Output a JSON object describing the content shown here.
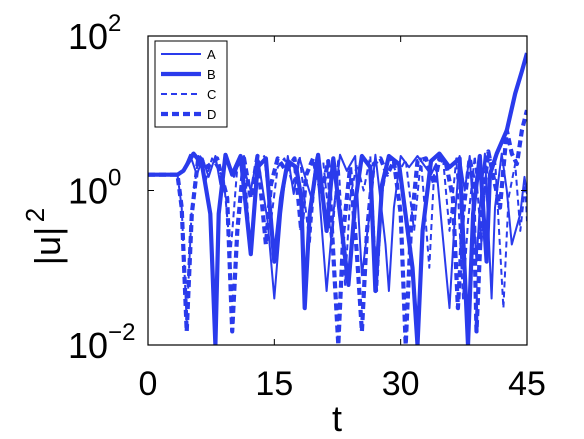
{
  "chart_data": {
    "type": "line",
    "xlabel": "t",
    "ylabel": "|u|",
    "ylabel_superscript": "2",
    "xlim": [
      0,
      45
    ],
    "ylim": [
      0.01,
      100
    ],
    "yscale": "log",
    "grid": false,
    "legend_position": "top-left",
    "xticks": [
      "0",
      "15",
      "30",
      "45"
    ],
    "xtick_values": [
      0,
      15,
      30,
      45
    ],
    "yticks": [
      {
        "value": 0.01,
        "base": "10",
        "exp": "−2"
      },
      {
        "value": 1,
        "base": "10",
        "exp": "0"
      },
      {
        "value": 100,
        "base": "10",
        "exp": "2"
      }
    ],
    "color": "#2a3bec",
    "series": [
      {
        "name": "A",
        "style": "solid-thin",
        "points": [
          [
            0,
            1.6
          ],
          [
            3.5,
            1.6
          ],
          [
            4.2,
            1.8
          ],
          [
            5.0,
            2.9
          ],
          [
            5.8,
            1.6
          ],
          [
            6.5,
            2.6
          ],
          [
            7.2,
            1.5
          ],
          [
            8.0,
            2.8
          ],
          [
            8.6,
            1.2
          ],
          [
            9.2,
            2.9
          ],
          [
            10.2,
            1.5
          ],
          [
            11.0,
            2.6
          ],
          [
            12.2,
            1.0
          ],
          [
            13.0,
            2.9
          ],
          [
            14.2,
            0.4
          ],
          [
            15.0,
            0.04
          ],
          [
            15.8,
            0.5
          ],
          [
            16.6,
            2.8
          ],
          [
            17.3,
            0.9
          ],
          [
            18.0,
            2.6
          ],
          [
            19.4,
            0.8
          ],
          [
            20.0,
            2.7
          ],
          [
            21.2,
            0.05
          ],
          [
            22.0,
            0.5
          ],
          [
            22.8,
            2.9
          ],
          [
            23.6,
            1.8
          ],
          [
            24.6,
            2.8
          ],
          [
            25.4,
            0.08
          ],
          [
            26.2,
            0.4
          ],
          [
            27.0,
            2.9
          ],
          [
            28.2,
            0.2
          ],
          [
            28.6,
            0.05
          ],
          [
            29.2,
            0.6
          ],
          [
            30.0,
            2.8
          ],
          [
            31.0,
            2.0
          ],
          [
            32.0,
            2.8
          ],
          [
            33.6,
            1.6
          ],
          [
            34.2,
            2.2
          ],
          [
            35.8,
            0.03
          ],
          [
            36.4,
            0.4
          ],
          [
            37.0,
            2.8
          ],
          [
            37.6,
            1.0
          ],
          [
            38.2,
            2.8
          ],
          [
            39.0,
            0.12
          ],
          [
            39.4,
            0.6
          ],
          [
            40.0,
            3.0
          ],
          [
            40.8,
            0.04
          ],
          [
            41.2,
            0.6
          ],
          [
            42.0,
            3.0
          ],
          [
            42.6,
            1.0
          ],
          [
            43.2,
            0.2
          ],
          [
            44.2,
            0.5
          ],
          [
            44.7,
            1.5
          ],
          [
            45.0,
            0.9
          ]
        ]
      },
      {
        "name": "B",
        "style": "solid-thick",
        "points": [
          [
            0,
            1.6
          ],
          [
            3.5,
            1.6
          ],
          [
            4.2,
            1.8
          ],
          [
            5.4,
            3.0
          ],
          [
            6.4,
            2.2
          ],
          [
            7.4,
            0.5
          ],
          [
            8.0,
            0.01
          ],
          [
            8.4,
            0.5
          ],
          [
            9.2,
            2.9
          ],
          [
            10.0,
            1.6
          ],
          [
            11.0,
            2.8
          ],
          [
            12.2,
            0.15
          ],
          [
            13.0,
            2.0
          ],
          [
            14.0,
            2.6
          ],
          [
            15.0,
            0.12
          ],
          [
            15.8,
            0.8
          ],
          [
            16.6,
            2.4
          ],
          [
            17.6,
            2.0
          ],
          [
            18.2,
            0.8
          ],
          [
            18.6,
            0.03
          ],
          [
            19.2,
            0.5
          ],
          [
            20.2,
            2.9
          ],
          [
            21.2,
            0.3
          ],
          [
            22.0,
            2.6
          ],
          [
            23.8,
            0.06
          ],
          [
            24.6,
            0.7
          ],
          [
            25.4,
            2.8
          ],
          [
            26.4,
            2.0
          ],
          [
            27.0,
            0.05
          ],
          [
            27.8,
            1.2
          ],
          [
            28.6,
            2.8
          ],
          [
            29.8,
            2.2
          ],
          [
            31.4,
            0.1
          ],
          [
            32.0,
            0.01
          ],
          [
            32.6,
            0.3
          ],
          [
            33.6,
            2.4
          ],
          [
            34.6,
            3.0
          ],
          [
            35.8,
            2.0
          ],
          [
            37.0,
            2.6
          ],
          [
            38.0,
            0.01
          ],
          [
            38.6,
            0.5
          ],
          [
            39.4,
            2.8
          ],
          [
            40.2,
            0.12
          ],
          [
            40.6,
            1.6
          ],
          [
            41.4,
            3.0
          ],
          [
            42.6,
            6.0
          ],
          [
            43.6,
            18
          ],
          [
            44.4,
            35
          ],
          [
            45.0,
            60
          ]
        ]
      },
      {
        "name": "C",
        "style": "dashed-thin",
        "points": [
          [
            0,
            1.6
          ],
          [
            3.5,
            1.6
          ],
          [
            4.0,
            0.6
          ],
          [
            4.6,
            0.02
          ],
          [
            5.2,
            0.6
          ],
          [
            6.0,
            2.8
          ],
          [
            6.8,
            1.3
          ],
          [
            7.6,
            2.6
          ],
          [
            9.0,
            1.4
          ],
          [
            9.8,
            0.15
          ],
          [
            10.6,
            2.0
          ],
          [
            11.4,
            2.8
          ],
          [
            12.2,
            0.15
          ],
          [
            13.0,
            1.8
          ],
          [
            13.8,
            2.8
          ],
          [
            14.6,
            0.4
          ],
          [
            15.4,
            2.0
          ],
          [
            16.2,
            2.6
          ],
          [
            17.2,
            1.2
          ],
          [
            18.0,
            2.8
          ],
          [
            19.2,
            0.2
          ],
          [
            20.0,
            2.4
          ],
          [
            20.8,
            2.4
          ],
          [
            21.8,
            0.2
          ],
          [
            22.6,
            2.6
          ],
          [
            23.4,
            0.06
          ],
          [
            24.0,
            0.8
          ],
          [
            24.8,
            2.2
          ],
          [
            25.6,
            1.0
          ],
          [
            26.4,
            2.8
          ],
          [
            27.2,
            0.05
          ],
          [
            27.8,
            0.9
          ],
          [
            28.6,
            2.8
          ],
          [
            29.6,
            1.6
          ],
          [
            30.6,
            2.5
          ],
          [
            31.6,
            0.3
          ],
          [
            32.4,
            2.6
          ],
          [
            33.4,
            0.1
          ],
          [
            34.0,
            2.0
          ],
          [
            35.0,
            2.8
          ],
          [
            35.8,
            0.3
          ],
          [
            36.6,
            2.6
          ],
          [
            37.4,
            0.04
          ],
          [
            38.0,
            0.4
          ],
          [
            38.8,
            2.8
          ],
          [
            39.6,
            0.2
          ],
          [
            40.2,
            2.4
          ],
          [
            41.2,
            2.6
          ],
          [
            42.2,
            0.03
          ],
          [
            42.8,
            0.8
          ],
          [
            43.6,
            2.2
          ],
          [
            44.2,
            0.3
          ],
          [
            44.8,
            1.2
          ],
          [
            45.0,
            0.4
          ]
        ]
      },
      {
        "name": "D",
        "style": "dashed-thick",
        "points": [
          [
            0,
            1.6
          ],
          [
            3.5,
            1.6
          ],
          [
            4.0,
            0.6
          ],
          [
            4.6,
            0.015
          ],
          [
            5.2,
            0.5
          ],
          [
            6.0,
            2.8
          ],
          [
            7.0,
            2.0
          ],
          [
            8.2,
            2.6
          ],
          [
            9.4,
            0.8
          ],
          [
            10.0,
            0.015
          ],
          [
            10.6,
            0.3
          ],
          [
            11.4,
            2.6
          ],
          [
            12.2,
            0.8
          ],
          [
            13.0,
            2.8
          ],
          [
            14.0,
            0.2
          ],
          [
            14.6,
            1.2
          ],
          [
            15.4,
            2.6
          ],
          [
            16.4,
            1.8
          ],
          [
            17.4,
            2.6
          ],
          [
            18.2,
            0.3
          ],
          [
            18.8,
            1.6
          ],
          [
            19.6,
            2.6
          ],
          [
            20.6,
            0.9
          ],
          [
            21.4,
            2.4
          ],
          [
            22.6,
            0.01
          ],
          [
            23.2,
            0.3
          ],
          [
            24.0,
            2.0
          ],
          [
            24.8,
            0.15
          ],
          [
            25.4,
            0.015
          ],
          [
            26.0,
            0.3
          ],
          [
            26.8,
            2.2
          ],
          [
            27.6,
            2.6
          ],
          [
            28.4,
            1.6
          ],
          [
            29.2,
            2.4
          ],
          [
            30.0,
            0.5
          ],
          [
            30.6,
            0.01
          ],
          [
            31.2,
            0.3
          ],
          [
            32.0,
            2.4
          ],
          [
            33.0,
            2.6
          ],
          [
            34.0,
            1.2
          ],
          [
            34.6,
            2.6
          ],
          [
            35.4,
            2.2
          ],
          [
            36.2,
            0.8
          ],
          [
            36.8,
            0.03
          ],
          [
            37.4,
            0.5
          ],
          [
            38.2,
            2.6
          ],
          [
            38.6,
            1.5
          ],
          [
            39.0,
            0.015
          ],
          [
            39.6,
            0.5
          ],
          [
            40.4,
            3.2
          ],
          [
            41.2,
            1.2
          ],
          [
            41.8,
            0.6
          ],
          [
            42.6,
            6.0
          ],
          [
            43.2,
            3.0
          ],
          [
            43.8,
            2.2
          ],
          [
            44.4,
            6.0
          ],
          [
            45.0,
            11.0
          ]
        ]
      }
    ]
  }
}
